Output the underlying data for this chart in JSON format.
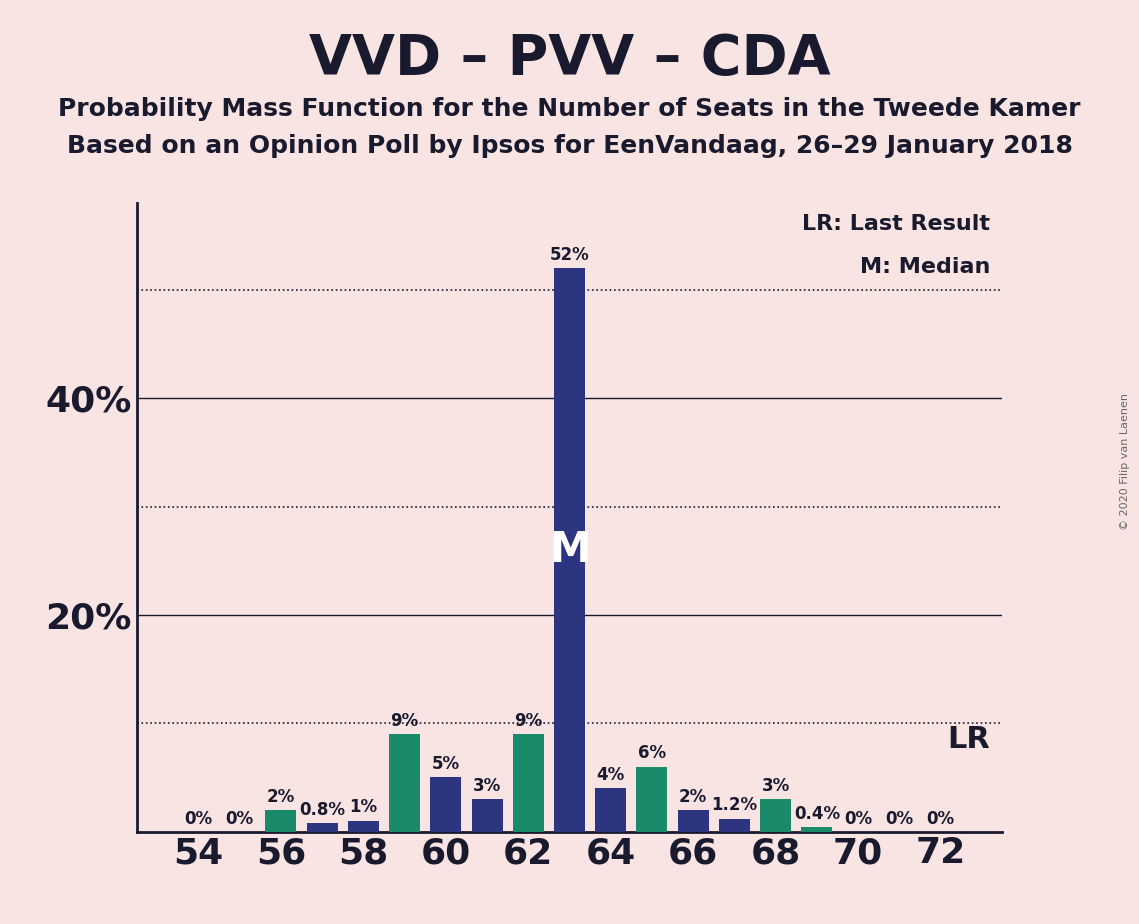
{
  "title": "VVD – PVV – CDA",
  "subtitle1": "Probability Mass Function for the Number of Seats in the Tweede Kamer",
  "subtitle2": "Based on an Opinion Poll by Ipsos for EenVandaag, 26–29 January 2018",
  "copyright": "© 2020 Filip van Laenen",
  "background_color": "#f9e4e4",
  "seats": [
    54,
    55,
    56,
    57,
    58,
    59,
    60,
    61,
    62,
    63,
    64,
    65,
    66,
    67,
    68,
    69,
    70,
    71,
    72
  ],
  "values": [
    0.0,
    0.0,
    2.0,
    0.8,
    1.0,
    9.0,
    5.0,
    3.0,
    9.0,
    52.0,
    4.0,
    6.0,
    2.0,
    1.2,
    3.0,
    0.4,
    0.0,
    0.0,
    0.0
  ],
  "bar_colors": [
    "#2d3580",
    "#2d3580",
    "#1b8a6b",
    "#2d3580",
    "#2d3580",
    "#1b8a6b",
    "#2d3580",
    "#2d3580",
    "#1b8a6b",
    "#2d3580",
    "#2d3580",
    "#1b8a6b",
    "#2d3580",
    "#2d3580",
    "#1b8a6b",
    "#1b8a6b",
    "#2d3580",
    "#2d3580",
    "#2d3580"
  ],
  "median_seat": 63,
  "median_label": "M",
  "lr_label": "LR",
  "ylim_max": 58,
  "solid_hlines": [
    20,
    40
  ],
  "dotted_hlines": [
    10,
    30,
    50
  ],
  "ytick_positions": [
    20,
    40
  ],
  "ytick_labels": [
    "20%",
    "40%"
  ],
  "xtick_positions": [
    54,
    56,
    58,
    60,
    62,
    64,
    66,
    68,
    70,
    72
  ],
  "legend_lr_text": "LR: Last Result",
  "legend_m_text": "M: Median",
  "xlim_left": 52.5,
  "xlim_right": 73.5,
  "bar_width": 0.75,
  "title_fontsize": 40,
  "subtitle_fontsize": 18,
  "axis_tick_fontsize": 26,
  "ytick_fontsize": 26,
  "bar_label_fontsize": 12,
  "legend_fontsize": 16,
  "lr_text_fontsize": 22,
  "m_inside_fontsize": 30,
  "text_color": "#1a1a2e"
}
